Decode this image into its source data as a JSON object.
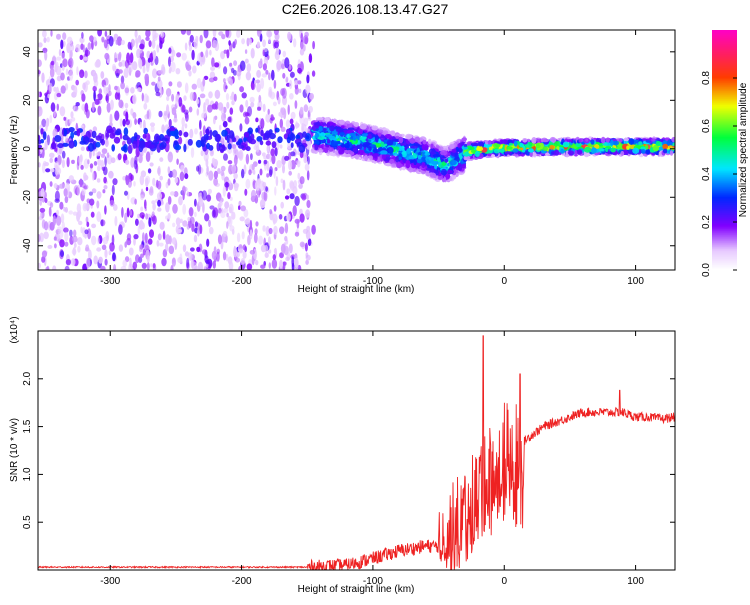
{
  "title": "C2E6.2026.108.13.47.G27",
  "colors": {
    "signal_line": "#ee2222",
    "background": "#ffffff"
  },
  "chart_data": [
    {
      "type": "heatmap",
      "xlabel": "Height of straight line (km)",
      "ylabel": "Frequency (Hz)",
      "xlim": [
        -355,
        130
      ],
      "ylim": [
        -50,
        49
      ],
      "xticks": [
        -300,
        -200,
        -100,
        0,
        100
      ],
      "xtick_labels": [
        "-300",
        "-200",
        "-100",
        "0",
        "100"
      ],
      "yticks": [
        -40,
        -20,
        0,
        20,
        40
      ],
      "ytick_labels": [
        "-40",
        "-20",
        "0",
        "20",
        "40"
      ],
      "colorbar": {
        "label": "Normalized spectral amplitude",
        "range": [
          0,
          1
        ],
        "ticks": [
          0.0,
          0.2,
          0.4,
          0.6,
          0.8
        ],
        "tick_labels": [
          "0.0",
          "0.2",
          "0.4",
          "0.6",
          "0.8"
        ],
        "colormap": "hsv-rainbow (white at 0, purple, blue, cyan, green, yellow, red, magenta at 1)"
      },
      "regions": [
        {
          "x": [
            -355,
            -145
          ],
          "freq_span": [
            -50,
            49
          ],
          "amplitude": "0.05-0.2 (speckled noise)"
        },
        {
          "x": [
            -145,
            -30
          ],
          "ridge_freq_path": [
            [
              -145,
              6
            ],
            [
              -120,
              4
            ],
            [
              -100,
              2
            ],
            [
              -80,
              -1
            ],
            [
              -60,
              -3
            ],
            [
              -45,
              -7
            ],
            [
              -30,
              -2
            ]
          ],
          "amplitude": "0.3-0.6"
        },
        {
          "x": [
            -30,
            130
          ],
          "ridge_freq_path": [
            [
              -30,
              -1
            ],
            [
              -10,
              0
            ],
            [
              0,
              0.5
            ],
            [
              50,
              0.8
            ],
            [
              130,
              1
            ]
          ],
          "amplitude": "0.6-1.0"
        }
      ],
      "grid": false
    },
    {
      "type": "line",
      "xlabel": "Height of straight line (km)",
      "ylabel": "SNR (10 * v/v)",
      "y_multiplier": "(x10⁴)",
      "xlim": [
        -355,
        130
      ],
      "ylim": [
        0,
        2.5
      ],
      "xticks": [
        -300,
        -200,
        -100,
        0,
        100
      ],
      "xtick_labels": [
        "-300",
        "-200",
        "-100",
        "0",
        "100"
      ],
      "yticks": [
        0.5,
        1.0,
        1.5,
        2.0
      ],
      "ytick_labels": [
        "0.5",
        "1.0",
        "1.5",
        "2.0"
      ],
      "series": [
        {
          "x": [
            -355,
            -300,
            -250,
            -200,
            -150,
            -120,
            -100,
            -80,
            -60,
            -50,
            -40,
            -30,
            -20,
            -15,
            -10,
            -5,
            0,
            5,
            10,
            15,
            20,
            30,
            40,
            50,
            60,
            70,
            80,
            90,
            100,
            110,
            120,
            130
          ],
          "y": [
            0.03,
            0.03,
            0.03,
            0.03,
            0.03,
            0.05,
            0.12,
            0.2,
            0.25,
            0.25,
            0.35,
            0.6,
            0.8,
            1.0,
            1.0,
            1.0,
            1.25,
            1.2,
            1.2,
            1.35,
            1.4,
            1.5,
            1.55,
            1.6,
            1.65,
            1.65,
            1.65,
            1.65,
            1.6,
            1.6,
            1.58,
            1.6
          ],
          "notable_peaks": [
            {
              "x": -16,
              "y": 2.45
            },
            {
              "x": 12,
              "y": 2.05
            },
            {
              "x": 88,
              "y": 1.88
            }
          ]
        }
      ],
      "grid": false
    }
  ]
}
